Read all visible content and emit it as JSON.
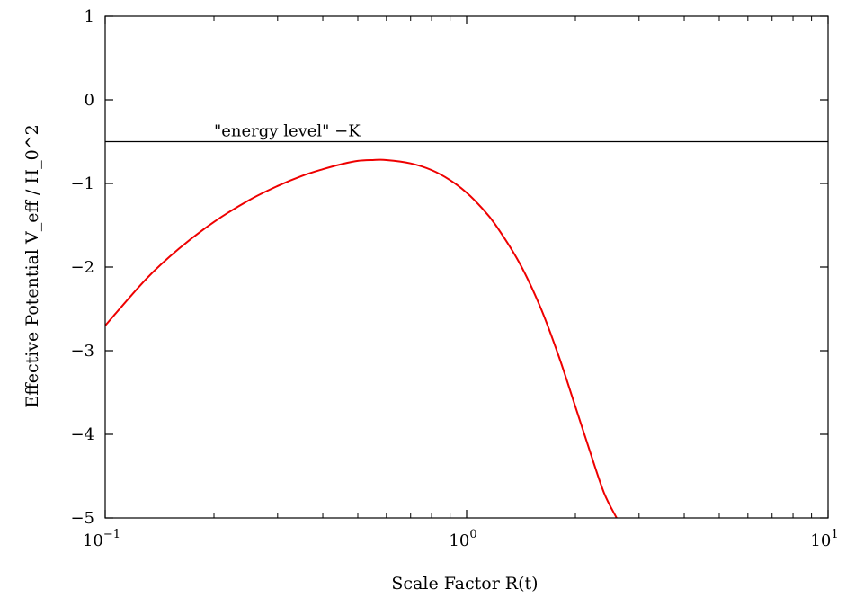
{
  "chart_data": {
    "type": "line",
    "title": "",
    "xlabel": "Scale Factor  R(t)",
    "ylabel": "Effective Potential  V_eff / H_0^2",
    "x_scale": "log",
    "xlim": [
      0.1,
      10
    ],
    "ylim": [
      -5,
      1
    ],
    "x_ticks": [
      {
        "base": "10",
        "exp": "−1"
      },
      {
        "base": "10",
        "exp": "0"
      },
      {
        "base": "10",
        "exp": "1"
      }
    ],
    "y_ticks": [
      "−5",
      "−4",
      "−3",
      "−2",
      "−1",
      "0",
      "1"
    ],
    "grid": false,
    "legend": "none",
    "series": [
      {
        "color": "#ee0000",
        "x": [
          0.1,
          0.13,
          0.16,
          0.2,
          0.25,
          0.3,
          0.35,
          0.4,
          0.45,
          0.5,
          0.55,
          0.6,
          0.7,
          0.8,
          0.9,
          1.0,
          1.1,
          1.2,
          1.4,
          1.6,
          1.8,
          2.0,
          2.2,
          2.4,
          2.6
        ],
        "y": [
          -2.7,
          -2.14,
          -1.78,
          -1.46,
          -1.2,
          -1.03,
          -0.91,
          -0.83,
          -0.77,
          -0.73,
          -0.72,
          -0.72,
          -0.76,
          -0.84,
          -0.96,
          -1.11,
          -1.29,
          -1.49,
          -1.95,
          -2.48,
          -3.07,
          -3.67,
          -4.22,
          -4.7,
          -5.0
        ]
      }
    ],
    "reference_line": {
      "y": -0.5,
      "color": "#000000",
      "label": "\"energy level\"  −K"
    }
  }
}
